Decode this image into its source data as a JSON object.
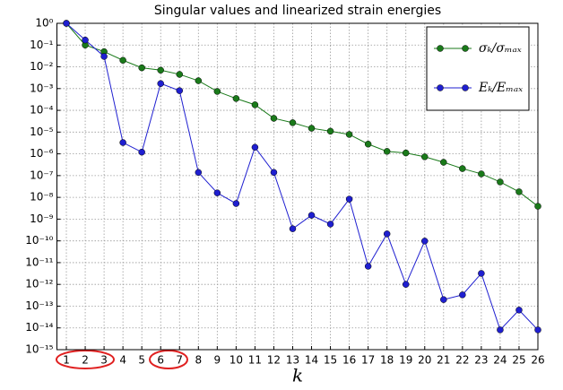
{
  "chart_data": {
    "type": "line",
    "title": "Singular values and linearized strain energies",
    "xlabel": "k",
    "x": [
      1,
      2,
      3,
      4,
      5,
      6,
      7,
      8,
      9,
      10,
      11,
      12,
      13,
      14,
      15,
      16,
      17,
      18,
      19,
      20,
      21,
      22,
      23,
      24,
      25,
      26
    ],
    "series": [
      {
        "name": "σₖ/σₘₐₓ",
        "color": "#1a7a1a",
        "values": [
          1,
          0.1,
          0.05,
          0.02,
          0.009,
          0.007,
          0.0045,
          0.0023,
          0.00074,
          0.00035,
          0.00018,
          4.3e-05,
          2.7e-05,
          1.5e-05,
          1.1e-05,
          7.8e-06,
          2.8e-06,
          1.3e-06,
          1.1e-06,
          7.3e-07,
          4.1e-07,
          2.1e-07,
          1.2e-07,
          5.1e-08,
          1.8e-08,
          3.9e-09
        ]
      },
      {
        "name": "Eₖ/Eₘₐₓ",
        "color": "#1f1fd0",
        "values": [
          1,
          0.17,
          0.03,
          3.3e-06,
          1.2e-06,
          0.0017,
          0.0008,
          1.4e-07,
          1.6e-08,
          5.2e-09,
          2e-06,
          1.4e-07,
          3.6e-10,
          1.5e-09,
          5.9e-10,
          8.3e-09,
          6.8e-12,
          2.1e-10,
          1e-12,
          9.8e-11,
          2e-13,
          3.3e-13,
          3.2e-12,
          8.1e-15,
          6.6e-14,
          8.1e-15
        ]
      }
    ],
    "xlim": [
      0.5,
      26
    ],
    "xticks": [
      1,
      2,
      3,
      4,
      5,
      6,
      7,
      8,
      9,
      10,
      11,
      12,
      13,
      14,
      15,
      16,
      17,
      18,
      19,
      20,
      21,
      22,
      23,
      24,
      25,
      26
    ],
    "ylim": [
      1e-15,
      1
    ],
    "log_y": true,
    "grid": true,
    "yticks": [
      {
        "value": 1,
        "label": "10⁰"
      },
      {
        "value": 0.1,
        "label": "10⁻¹"
      },
      {
        "value": 0.01,
        "label": "10⁻²"
      },
      {
        "value": 0.001,
        "label": "10⁻³"
      },
      {
        "value": 0.0001,
        "label": "10⁻⁴"
      },
      {
        "value": 1e-05,
        "label": "10⁻⁵"
      },
      {
        "value": 1e-06,
        "label": "10⁻⁶"
      },
      {
        "value": 1e-07,
        "label": "10⁻⁷"
      },
      {
        "value": 1e-08,
        "label": "10⁻⁸"
      },
      {
        "value": 1e-09,
        "label": "10⁻⁹"
      },
      {
        "value": 1e-10,
        "label": "10⁻¹⁰"
      },
      {
        "value": 1e-11,
        "label": "10⁻¹¹"
      },
      {
        "value": 1e-12,
        "label": "10⁻¹²"
      },
      {
        "value": 1e-13,
        "label": "10⁻¹³"
      },
      {
        "value": 1e-14,
        "label": "10⁻¹⁴"
      },
      {
        "value": 1e-15,
        "label": "10⁻¹⁵"
      }
    ]
  }
}
